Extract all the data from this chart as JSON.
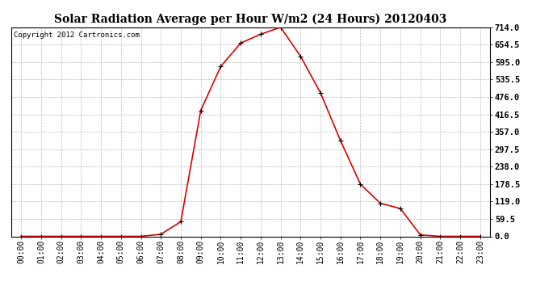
{
  "title": "Solar Radiation Average per Hour W/m2 (24 Hours) 20120403",
  "copyright": "Copyright 2012 Cartronics.com",
  "hours": [
    0,
    1,
    2,
    3,
    4,
    5,
    6,
    7,
    8,
    9,
    10,
    11,
    12,
    13,
    14,
    15,
    16,
    17,
    18,
    19,
    20,
    21,
    22,
    23
  ],
  "values": [
    0,
    0,
    0,
    0,
    0,
    0,
    0,
    7,
    50,
    430,
    580,
    660,
    690,
    714,
    615,
    490,
    327,
    178,
    113,
    95,
    5,
    0,
    0,
    0
  ],
  "x_labels": [
    "00:00",
    "01:00",
    "02:00",
    "03:00",
    "04:00",
    "05:00",
    "06:00",
    "07:00",
    "08:00",
    "09:00",
    "10:00",
    "11:00",
    "12:00",
    "13:00",
    "14:00",
    "15:00",
    "16:00",
    "17:00",
    "18:00",
    "19:00",
    "20:00",
    "21:00",
    "22:00",
    "23:00"
  ],
  "y_ticks": [
    0.0,
    59.5,
    119.0,
    178.5,
    238.0,
    297.5,
    357.0,
    416.5,
    476.0,
    535.5,
    595.0,
    654.5,
    714.0
  ],
  "ylim": [
    0,
    714
  ],
  "line_color": "#dd0000",
  "marker_color": "#000000",
  "grid_color": "#bbbbbb",
  "background_color": "#ffffff",
  "title_fontsize": 10,
  "copyright_fontsize": 6.5,
  "tick_fontsize": 7,
  "ytick_fontsize": 7.5
}
